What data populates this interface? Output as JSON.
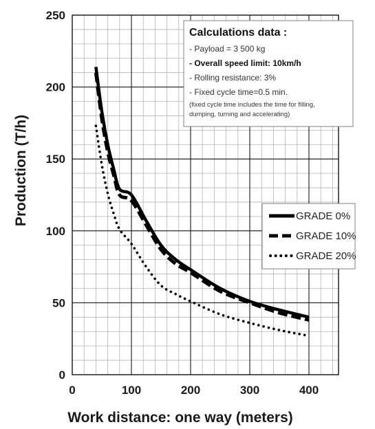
{
  "chart_data": {
    "type": "line",
    "xlabel": "Work distance: one way (meters)",
    "ylabel": "Production (T/h)",
    "xlim": [
      0,
      450
    ],
    "ylim": [
      0,
      250
    ],
    "xticks": [
      "0",
      "100",
      "200",
      "300",
      "400"
    ],
    "yticks": [
      "0",
      "50",
      "100",
      "150",
      "200",
      "250"
    ],
    "grid": true,
    "legend_position": "right",
    "x": [
      40,
      50,
      60,
      70,
      80,
      100,
      125,
      150,
      175,
      200,
      250,
      300,
      350,
      400
    ],
    "series": [
      {
        "name": "GRADE 0%",
        "style": "solid",
        "values": [
          214,
          183,
          160,
          143,
          129,
          125,
          107,
          90,
          80,
          73,
          60,
          51,
          45,
          40
        ]
      },
      {
        "name": "GRADE 10%",
        "style": "dashed",
        "values": [
          210,
          178,
          155,
          139,
          125,
          121,
          104,
          87,
          77,
          71,
          58,
          50,
          43,
          38
        ]
      },
      {
        "name": "GRADE 20%",
        "style": "dotted",
        "values": [
          173,
          146,
          126,
          112,
          101,
          91,
          75,
          62,
          56,
          51,
          42,
          36,
          31,
          27
        ]
      }
    ],
    "annotation": {
      "title": "Calculations data :",
      "lines": [
        {
          "text": "- Payload = 3 500 kg",
          "bold": false
        },
        {
          "text": "- Overall speed limit: 10km/h",
          "bold": true
        },
        {
          "text": "- Rolling resistance: 3%",
          "bold": false
        },
        {
          "text": "- Fixed cycle time=0.5 min.",
          "bold": false
        }
      ],
      "note_lines": [
        "(fixed cycle time includes the time for filling,",
        "dumping, turning and accelerating)"
      ]
    }
  }
}
